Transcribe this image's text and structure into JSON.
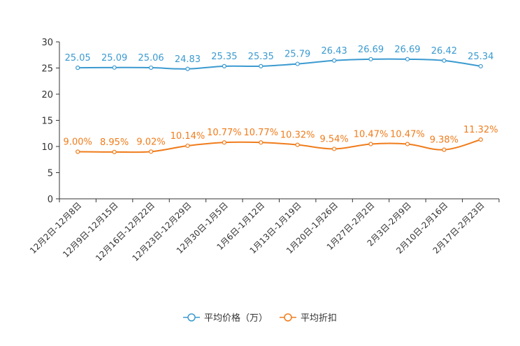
{
  "chart_data": {
    "type": "line",
    "categories": [
      "12月2日-12月8日",
      "12月9日-12月15日",
      "12月16日-12月22日",
      "12月23日-12月29日",
      "12月30日-1月5日",
      "1月6日-1月12日",
      "1月13日-1月19日",
      "1月20日-1月26日",
      "1月27日-2月2日",
      "2月3日-2月9日",
      "2月10日-2月16日",
      "2月17日-2月23日"
    ],
    "ylim": [
      0,
      30
    ],
    "yticks": [
      "0",
      "5",
      "10",
      "15",
      "20",
      "25",
      "30"
    ],
    "series": [
      {
        "name": "平均价格（万）",
        "color": "#3b9ad0",
        "values": [
          25.05,
          25.09,
          25.06,
          24.83,
          25.35,
          25.35,
          25.79,
          26.43,
          26.69,
          26.69,
          26.42,
          25.34
        ],
        "labels": [
          "25.05",
          "25.09",
          "25.06",
          "24.83",
          "25.35",
          "25.35",
          "25.79",
          "26.43",
          "26.69",
          "26.69",
          "26.42",
          "25.34"
        ]
      },
      {
        "name": "平均折扣",
        "color": "#f07c1b",
        "values": [
          9.0,
          8.95,
          9.02,
          10.14,
          10.77,
          10.77,
          10.32,
          9.54,
          10.47,
          10.47,
          9.38,
          11.32
        ],
        "labels": [
          "9.00%",
          "8.95%",
          "9.02%",
          "10.14%",
          "10.77%",
          "10.77%",
          "10.32%",
          "9.54%",
          "10.47%",
          "10.47%",
          "9.38%",
          "11.32%"
        ]
      }
    ],
    "legend_position": "bottom-center",
    "title": "",
    "xlabel": "",
    "ylabel": ""
  }
}
